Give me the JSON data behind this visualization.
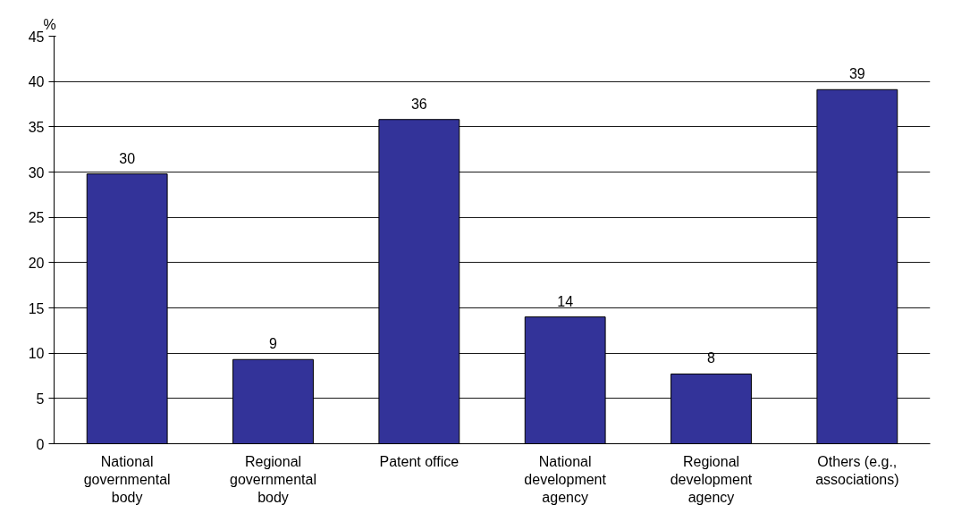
{
  "chart_data": {
    "type": "bar",
    "ylabel": "%",
    "categories": [
      "National\ngovernmental\nbody",
      "Regional\ngovernmental\nbody",
      "Patent office",
      "National\ndevelopment\nagency",
      "Regional\ndevelopment\nagency",
      "Others (e.g.,\nassociations)"
    ],
    "values": [
      29.8,
      9.3,
      35.8,
      14,
      7.7,
      39.1
    ],
    "value_labels": [
      "30",
      "9",
      "36",
      "14",
      "8",
      "39"
    ],
    "color": "#333399",
    "ylim": [
      0,
      45
    ],
    "yticks": [
      0,
      5,
      10,
      15,
      20,
      25,
      30,
      35,
      40,
      45
    ],
    "grid": "y"
  }
}
